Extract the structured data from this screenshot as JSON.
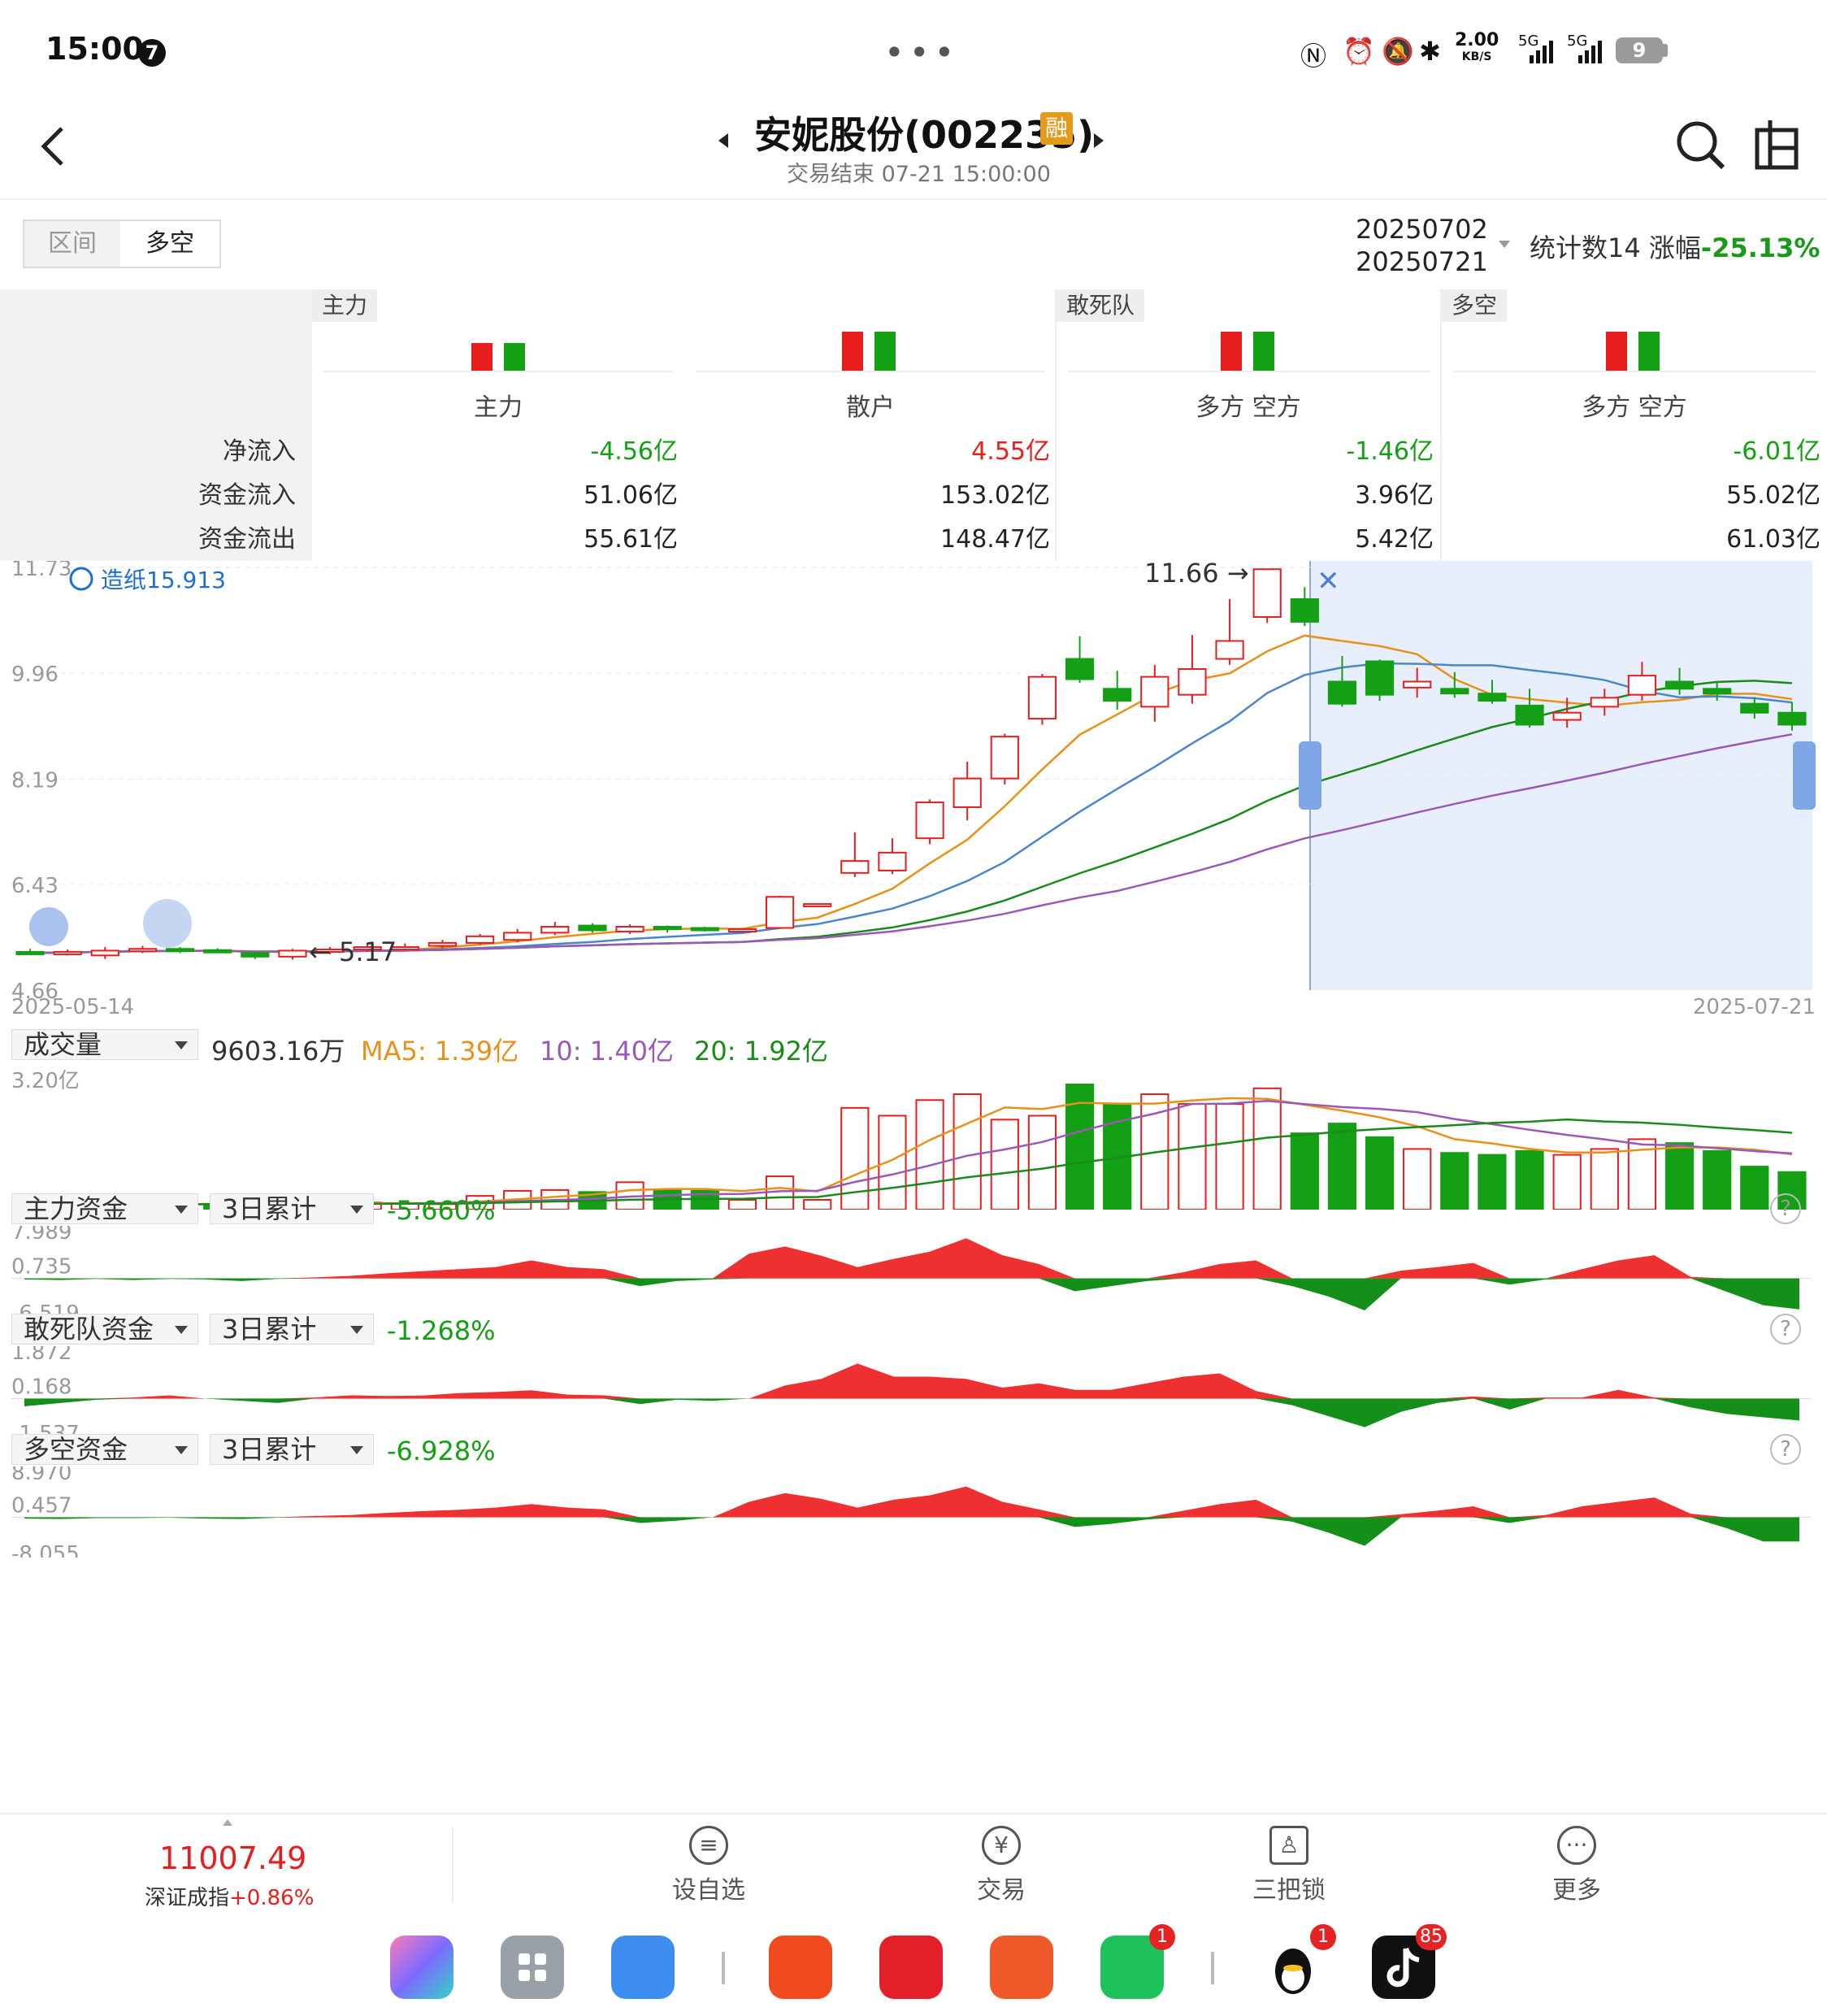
{
  "status_bar": {
    "time": "15:00",
    "notif_count": "7",
    "dots": "•••",
    "net_speed_top": "2.00",
    "net_speed_bottom": "KB/S",
    "signal1": "5G",
    "signal2": "5G",
    "battery": "9"
  },
  "header": {
    "title": "安妮股份(002235)",
    "margin_badge": "融",
    "subtitle": "交易结束 07-21 15:00:00"
  },
  "toolbar": {
    "tab_interval": "区间",
    "tab_duokong": "多空",
    "date_start": "20250702",
    "date_end": "20250721",
    "stat_label": "统计数14 涨幅",
    "stat_pct": "-25.13%"
  },
  "flow_table": {
    "row_labels": [
      "净流入",
      "资金流入",
      "资金流出"
    ],
    "groups": [
      {
        "tag": "主力",
        "columns": [
          {
            "title": "主力",
            "values": [
              "-4.56亿",
              "51.06亿",
              "55.61亿"
            ]
          },
          {
            "title": "散户",
            "values": [
              "4.55亿",
              "153.02亿",
              "148.47亿"
            ]
          }
        ]
      },
      {
        "tag": "敢死队",
        "columns": [
          {
            "title": "多方 空方",
            "values": [
              "-1.46亿",
              "3.96亿",
              "5.42亿"
            ]
          }
        ]
      },
      {
        "tag": "多空",
        "columns": [
          {
            "title": "多方 空方",
            "values": [
              "-6.01亿",
              "55.02亿",
              "61.03亿"
            ]
          }
        ]
      }
    ]
  },
  "kline": {
    "y_ticks": [
      "11.73",
      "9.96",
      "8.19",
      "6.43",
      "4.66"
    ],
    "x_start": "2025-05-14",
    "x_end": "2025-07-21",
    "high_label": "11.66 →",
    "low_label": "← 5.17",
    "zaozhi_label": "造纸15.913"
  },
  "volume": {
    "selector": "成交量",
    "value": "9603.16万",
    "ma5": "MA5: 1.39亿",
    "ma10": "10: 1.40亿",
    "ma20": "20: 1.92亿",
    "y_max": "3.20亿"
  },
  "indicators": [
    {
      "name": "主力资金",
      "period": "3日累计",
      "pct": "-5.660%",
      "ticks": [
        "7.989",
        "0.735",
        "-6.519"
      ]
    },
    {
      "name": "敢死队资金",
      "period": "3日累计",
      "pct": "-1.268%",
      "ticks": [
        "1.872",
        "0.168",
        "-1.537"
      ]
    },
    {
      "name": "多空资金",
      "period": "3日累计",
      "pct": "-6.928%",
      "ticks": [
        "8.970",
        "0.457",
        "-8.055"
      ]
    }
  ],
  "bottom_nav": {
    "index_value": "11007.49",
    "index_name": "深证成指",
    "index_change": "+0.86%",
    "items": [
      {
        "label": "设自选",
        "icon": "list-icon"
      },
      {
        "label": "交易",
        "icon": "yuan-icon"
      },
      {
        "label": "三把锁",
        "icon": "lock-icon"
      },
      {
        "label": "更多",
        "icon": "more-icon"
      }
    ]
  },
  "dock": {
    "badges": [
      "1",
      "1",
      "85"
    ]
  },
  "colors": {
    "up": "#e61e1e",
    "down": "#14a014",
    "ma5": "#e8901a",
    "ma10": "#9b59b6",
    "ma20": "#1a8a1a",
    "accent_blue": "#1f6fd0"
  }
}
